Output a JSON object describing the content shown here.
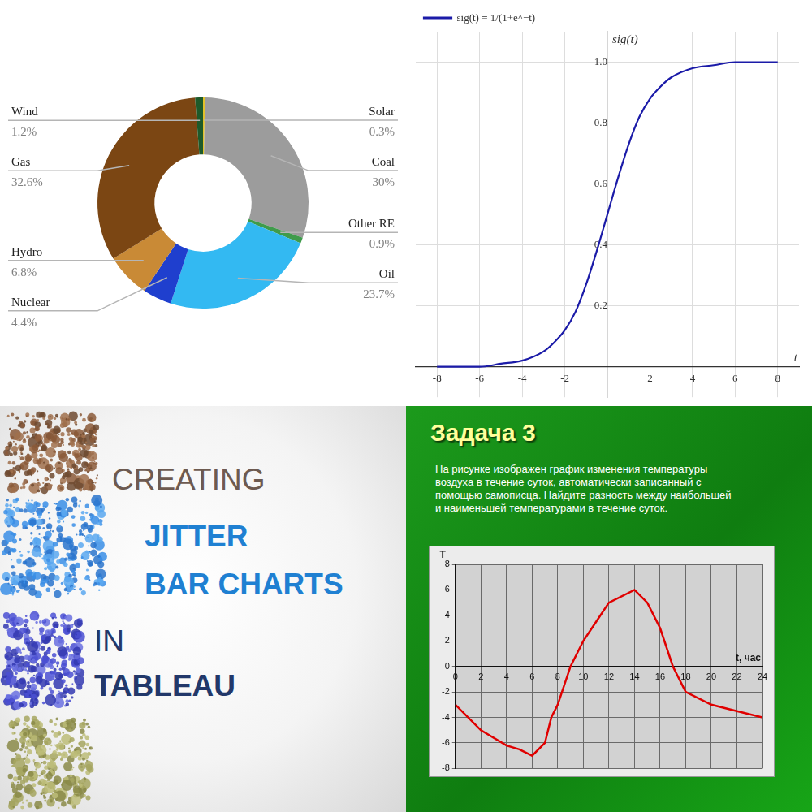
{
  "chart_data": [
    {
      "type": "doughnut",
      "categories": [
        "Solar",
        "Coal",
        "Other RE",
        "Oil",
        "Nuclear",
        "Hydro",
        "Gas",
        "Wind"
      ],
      "values": [
        0.3,
        30,
        0.9,
        23.7,
        4.4,
        6.8,
        32.6,
        1.2
      ],
      "value_labels": [
        "0.3%",
        "30%",
        "0.9%",
        "23.7%",
        "4.4%",
        "6.8%",
        "32.6%",
        "1.2%"
      ],
      "colors": [
        "#e2c22a",
        "#9c9c9c",
        "#3f9b4b",
        "#33b9f2",
        "#1f3fce",
        "#c98a36",
        "#7b4613",
        "#1d5a2a"
      ],
      "data_labels": true
    },
    {
      "type": "line",
      "x": [
        -8,
        -7,
        -6,
        -5,
        -4,
        -3,
        -2.5,
        -2,
        -1.5,
        -1,
        -0.5,
        0,
        0.5,
        1,
        1.5,
        2,
        2.5,
        3,
        4,
        5,
        6,
        7,
        8
      ],
      "series": [
        {
          "name": "sig(t) = 1/(1+e^−t)",
          "color": "#1b1ba8",
          "values": [
            0,
            0,
            0,
            0.01,
            0.02,
            0.05,
            0.08,
            0.12,
            0.18,
            0.27,
            0.38,
            0.5,
            0.62,
            0.73,
            0.82,
            0.88,
            0.92,
            0.95,
            0.98,
            0.99,
            1,
            1,
            1
          ]
        }
      ],
      "xlim": [
        -9,
        9
      ],
      "ylim": [
        -0.1,
        1.1
      ],
      "xticks": [
        -8,
        -6,
        -4,
        -2,
        2,
        4,
        6,
        8
      ],
      "yticks": [
        0.2,
        0.4,
        0.6,
        0.8,
        {
          "value": 1,
          "label": "1.0"
        }
      ],
      "xlabel": "t",
      "ylabel": "sig(t)",
      "grid": true,
      "legend": "top-left"
    },
    {
      "type": "line",
      "title": "Задача 3",
      "subtitle": "На рисунке изображен график изменения температуры воздуха в течение суток, автоматически записанный с помощью самописца. Найдите разность между наибольшей и наименьшей температурами в течение суток.",
      "x": [
        0,
        2,
        4,
        5,
        6,
        7,
        7.5,
        8,
        9,
        10,
        11,
        12,
        14,
        15,
        16,
        17,
        18,
        20,
        22,
        24
      ],
      "values": [
        -3,
        -5,
        -6.2,
        -6.5,
        -7,
        -6,
        -4,
        -3,
        0,
        2,
        3.5,
        5,
        6,
        5,
        3,
        0,
        -2,
        -3,
        -3.5,
        -4
      ],
      "color": "#e00000",
      "xlim": [
        0,
        24
      ],
      "ylim": [
        -8,
        8
      ],
      "xticks": [
        0,
        2,
        4,
        6,
        8,
        10,
        12,
        14,
        16,
        18,
        20,
        22,
        24
      ],
      "yticks": [
        -8,
        -6,
        -4,
        -2,
        0,
        2,
        4,
        6,
        8
      ],
      "xlabel": "t, час",
      "ylabel": "T",
      "grid": true
    }
  ],
  "banner": {
    "lines": [
      "CREATING",
      "JITTER",
      "BAR CHARTS",
      "IN",
      "TABLEAU"
    ]
  }
}
